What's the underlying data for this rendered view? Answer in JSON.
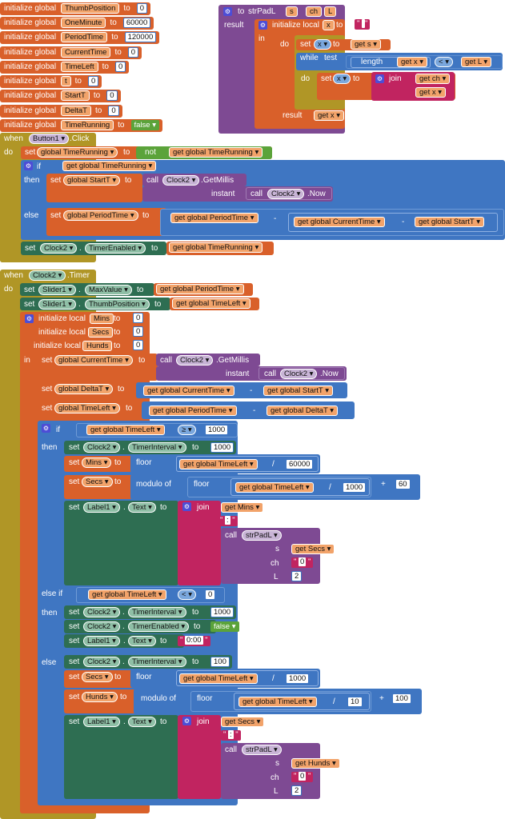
{
  "globals": [
    {
      "name": "ThumbPosition",
      "value": "0"
    },
    {
      "name": "OneMinute",
      "value": "60000"
    },
    {
      "name": "PeriodTime",
      "value": "120000"
    },
    {
      "name": "CurrentTime",
      "value": "0"
    },
    {
      "name": "TimeLeft",
      "value": "0"
    },
    {
      "name": "t",
      "value": "0"
    },
    {
      "name": "StartT",
      "value": "0"
    },
    {
      "name": "DeltaT",
      "value": "0"
    },
    {
      "name": "TimeRunning",
      "value": "false"
    }
  ],
  "kw": {
    "init_global": "initialize global",
    "to": "to",
    "when": "when",
    "do": "do",
    "if": "if",
    "then": "then",
    "else": "else",
    "else_if": "else if",
    "set": "set",
    "get": "get",
    "call": "call",
    "instant": "instant",
    "not": "not",
    "in": "in",
    "init_local": "initialize local",
    "result": "result",
    "while": "while",
    "test": "test",
    "length": "length",
    "join": "join",
    "floor": "floor",
    "modulo": "modulo of",
    "dot": ".",
    "s": "s",
    "ch": "ch",
    "L": "L"
  },
  "procedure": {
    "name": "strPadL",
    "params": [
      "s",
      "ch",
      "L"
    ],
    "local": "x",
    "local_init": " ",
    "lt": "<",
    "x": "x"
  },
  "button_event": {
    "component": "Button1",
    "event": ".Click",
    "v_TimeRunning": "global TimeRunning",
    "v_StartT": "global StartT",
    "v_PeriodTime": "global PeriodTime",
    "v_CurrentTime": "global CurrentTime",
    "clock": "Clock2",
    "getmillis": ".GetMillis",
    "now": ".Now",
    "timer_enabled": "TimerEnabled",
    "minus": "-"
  },
  "clock_event": {
    "component": "Clock2",
    "event": ".Timer",
    "slider": "Slider1",
    "max_value": "MaxValue",
    "thumb": "ThumbPosition",
    "v_PeriodTime": "global PeriodTime",
    "v_TimeLeft": "global TimeLeft",
    "v_CurrentTime": "global CurrentTime",
    "v_DeltaT": "global DeltaT",
    "v_StartT": "global StartT",
    "locals": [
      {
        "name": "Mins",
        "value": "0"
      },
      {
        "name": "Secs",
        "value": "0"
      },
      {
        "name": "Hunds",
        "value": "0"
      }
    ],
    "gte": "≥",
    "lt": "<",
    "n1000": "1000",
    "n60000": "60000",
    "n60": "60",
    "n0": "0",
    "n100": "100",
    "n10": "10",
    "n2": "2",
    "timer_interval": "TimerInterval",
    "timer_enabled": "TimerEnabled",
    "label": "Label1",
    "text": "Text",
    "colon": ":",
    "zero": "0",
    "zero_time": "0:00",
    "false": "false",
    "div": "/",
    "plus": "+",
    "minus": "-",
    "Mins": "Mins",
    "Secs": "Secs",
    "Hunds": "Hunds"
  }
}
